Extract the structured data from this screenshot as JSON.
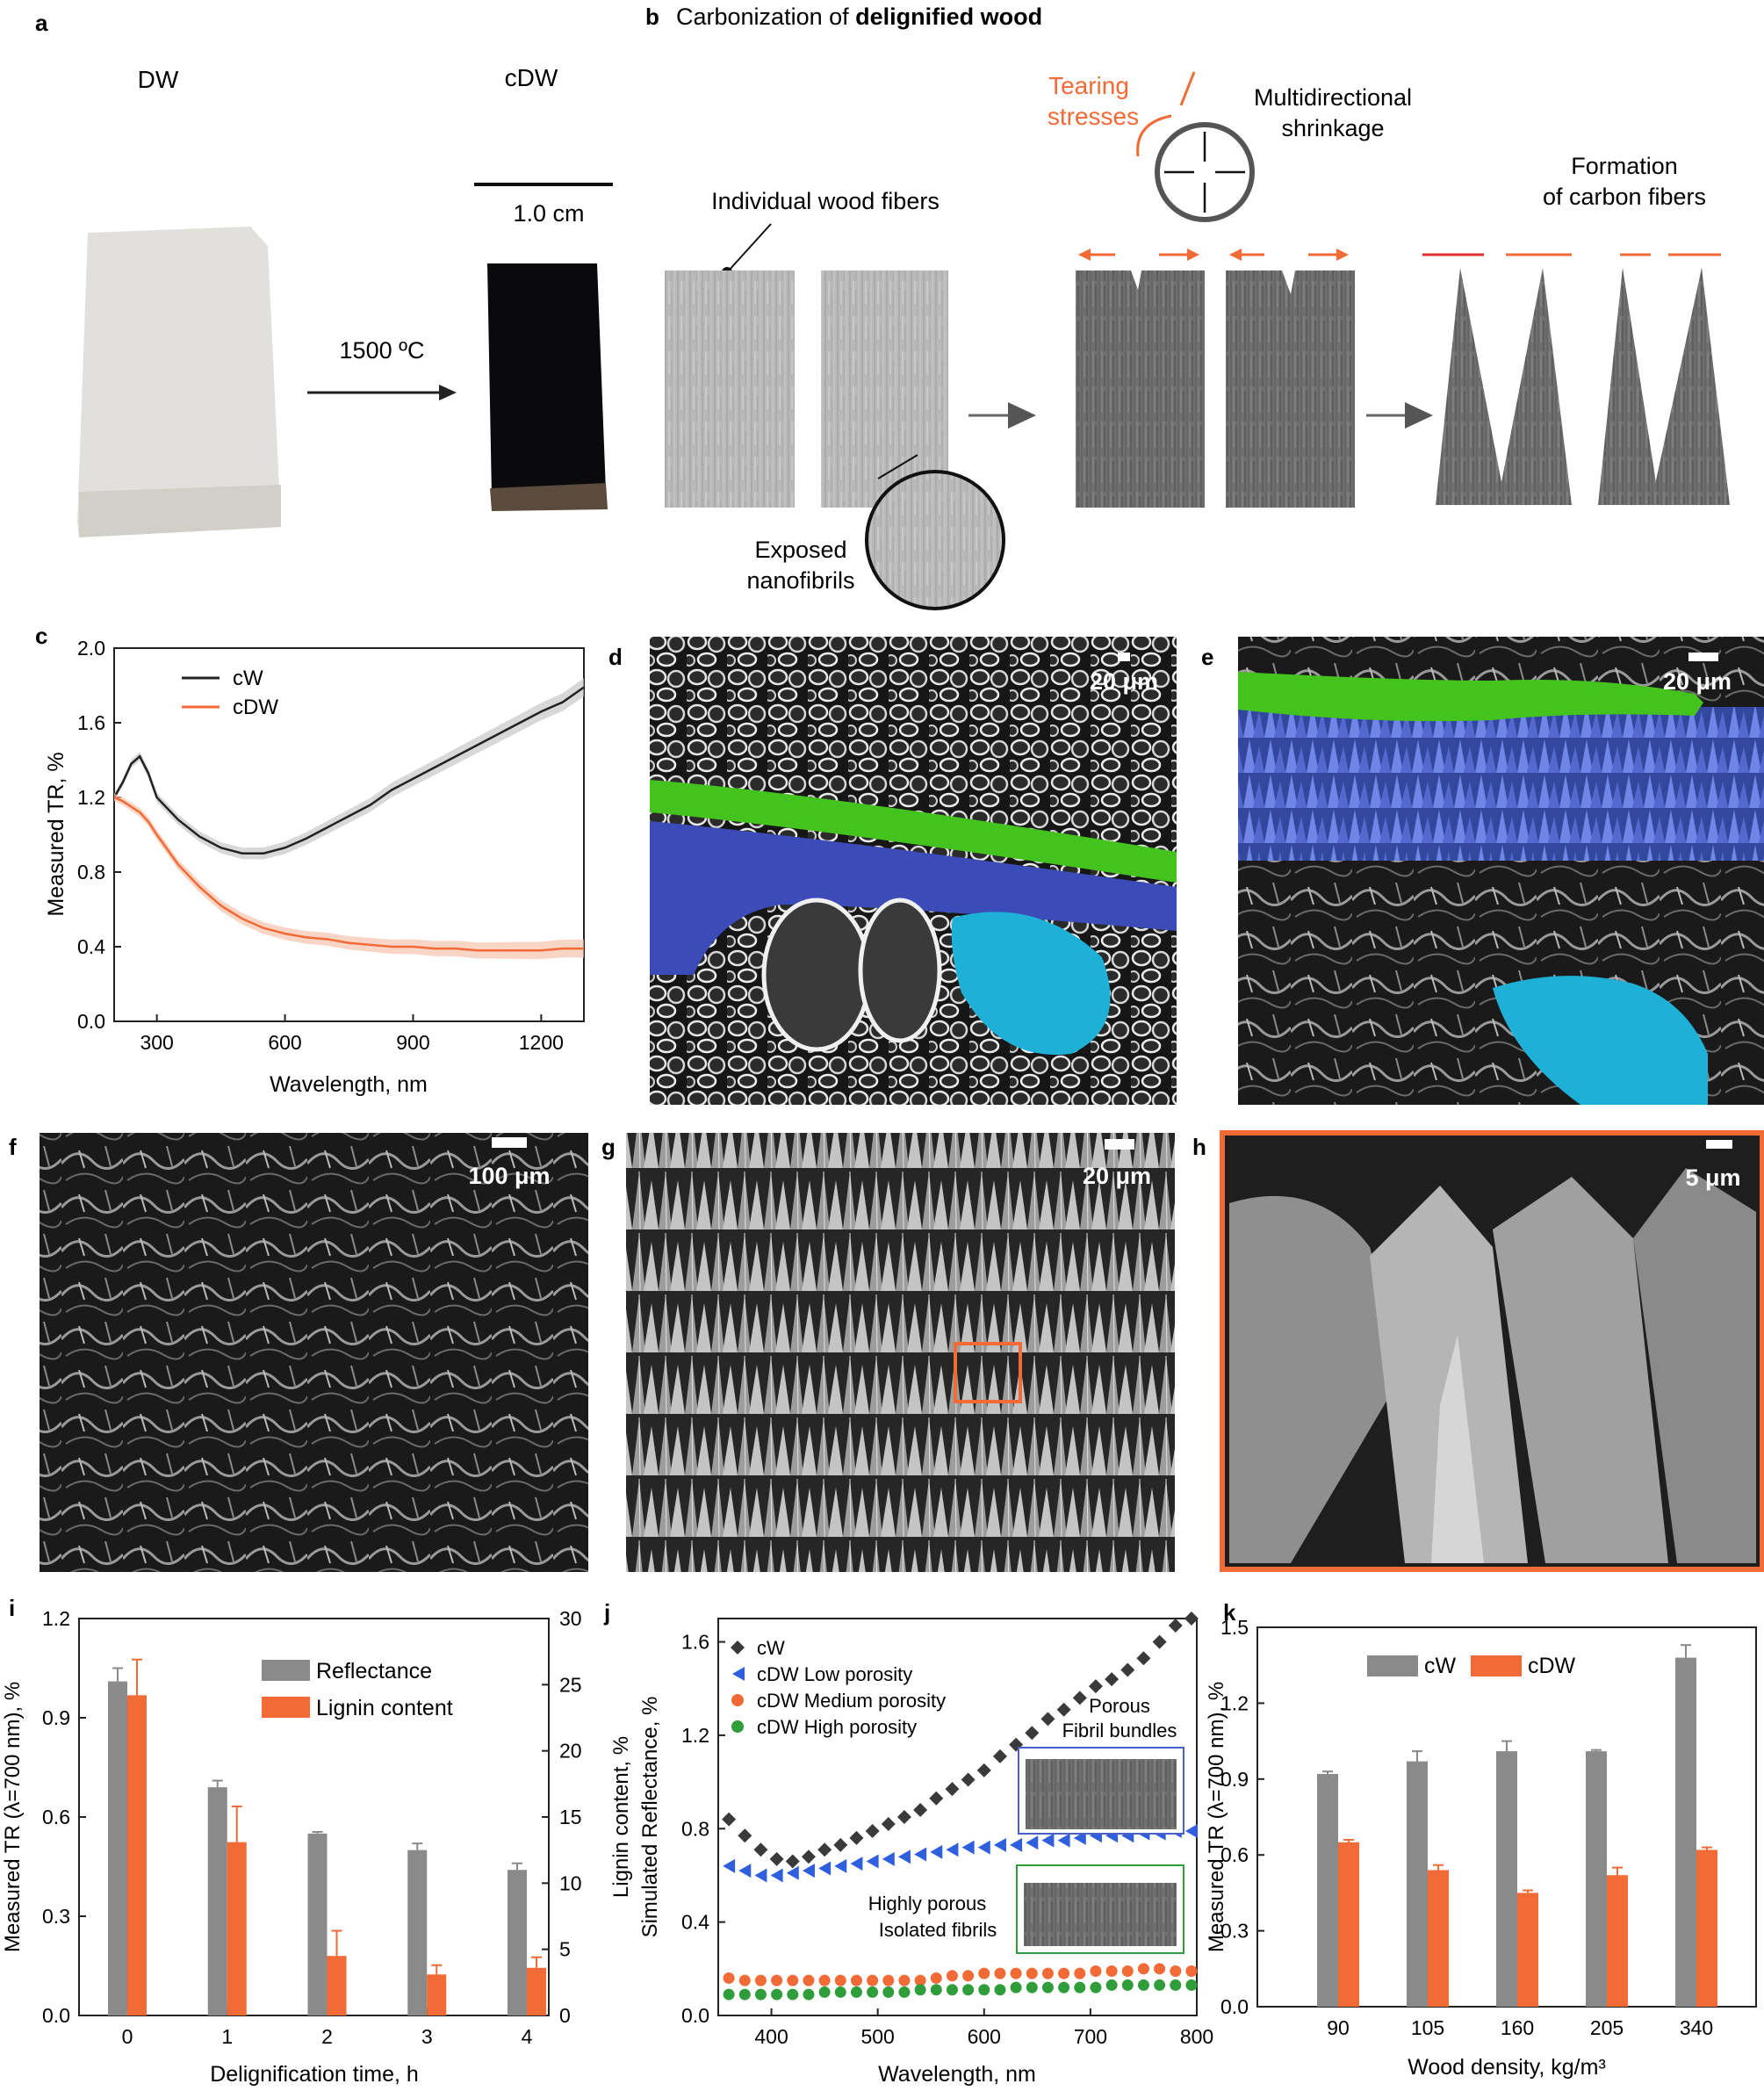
{
  "panel_letters": [
    "a",
    "b",
    "c",
    "d",
    "e",
    "f",
    "g",
    "h",
    "i",
    "j",
    "k"
  ],
  "panel_a": {
    "left_label": "DW",
    "right_label": "cDW",
    "arrow_label": "1500 ºC",
    "scale_label": "1.0 cm"
  },
  "panel_b": {
    "title_prefix": "Carbonization of ",
    "title_bold": "delignified wood",
    "fibers_label": "Individual wood fibers",
    "exposed_line1": "Exposed",
    "exposed_line2": "nanofibrils",
    "tearing_line1": "Tearing",
    "tearing_line2": "stresses",
    "shrink_line1": "Multidirectional",
    "shrink_line2": "shrinkage",
    "formation_line1": "Formation",
    "formation_line2": "of carbon fibers"
  },
  "micrographs": [
    {
      "panel": "d",
      "scale": "20 μm"
    },
    {
      "panel": "e",
      "scale": "20 μm"
    },
    {
      "panel": "f",
      "scale": "100 μm"
    },
    {
      "panel": "g",
      "scale": "20 μm"
    },
    {
      "panel": "h",
      "scale": "5 μm"
    }
  ],
  "colors": {
    "cw_gray": "#8a8a8a",
    "cdw_orange": "#f26a36",
    "green": "#44c21e",
    "blue": "#4b5fc8",
    "cyan": "#1fb0d8",
    "dark": "#222222"
  },
  "chart_data": [
    {
      "panel": "c",
      "type": "line",
      "xlabel": "Wavelength, nm",
      "ylabel": "Measured TR, %",
      "xlim": [
        200,
        1300
      ],
      "ylim": [
        0,
        2.0
      ],
      "xticks": [
        300,
        600,
        900,
        1200
      ],
      "yticks": [
        "0.0",
        "0.4",
        "0.8",
        "1.2",
        "1.6",
        "2.0"
      ],
      "series": [
        {
          "name": "cW",
          "x": [
            200,
            220,
            240,
            260,
            280,
            300,
            350,
            400,
            450,
            500,
            550,
            600,
            650,
            700,
            750,
            800,
            850,
            900,
            950,
            1000,
            1050,
            1100,
            1150,
            1200,
            1250,
            1300
          ],
          "y": [
            1.2,
            1.28,
            1.38,
            1.42,
            1.33,
            1.2,
            1.08,
            0.99,
            0.93,
            0.9,
            0.9,
            0.93,
            0.98,
            1.04,
            1.1,
            1.16,
            1.24,
            1.3,
            1.36,
            1.42,
            1.48,
            1.54,
            1.6,
            1.66,
            1.71,
            1.79
          ]
        },
        {
          "name": "cDW",
          "x": [
            200,
            220,
            240,
            260,
            280,
            300,
            350,
            400,
            450,
            500,
            550,
            600,
            650,
            700,
            750,
            800,
            850,
            900,
            950,
            1000,
            1050,
            1100,
            1150,
            1200,
            1250,
            1300
          ],
          "y": [
            1.2,
            1.18,
            1.15,
            1.12,
            1.07,
            1.0,
            0.84,
            0.72,
            0.62,
            0.55,
            0.5,
            0.47,
            0.45,
            0.44,
            0.42,
            0.41,
            0.4,
            0.4,
            0.39,
            0.39,
            0.38,
            0.38,
            0.38,
            0.38,
            0.39,
            0.39
          ]
        }
      ]
    },
    {
      "panel": "i",
      "type": "bar",
      "xlabel": "Delignification time, h",
      "ylabel": "Measured TR (λ=700 nm), %",
      "y2label": "Lignin content, %",
      "categories": [
        "0",
        "1",
        "2",
        "3",
        "4"
      ],
      "ylim": [
        0,
        1.2
      ],
      "y2lim": [
        0,
        30
      ],
      "yticks": [
        "0.0",
        "0.3",
        "0.6",
        "0.9",
        "1.2"
      ],
      "y2ticks": [
        "0",
        "5",
        "10",
        "15",
        "20",
        "25",
        "30"
      ],
      "series": [
        {
          "name": "Reflectance",
          "axis": "left",
          "values": [
            1.01,
            0.69,
            0.55,
            0.5,
            0.44
          ],
          "errors": [
            0.04,
            0.02,
            0.005,
            0.02,
            0.02
          ]
        },
        {
          "name": "Lignin content",
          "axis": "right",
          "values": [
            24.2,
            13.1,
            4.5,
            3.1,
            3.6
          ],
          "errors": [
            2.7,
            2.7,
            1.9,
            0.7,
            0.8
          ]
        }
      ]
    },
    {
      "panel": "j",
      "type": "scatter",
      "xlabel": "Wavelength, nm",
      "ylabel": "Simulated Reflectance, %",
      "xlim": [
        350,
        800
      ],
      "ylim": [
        0,
        1.7
      ],
      "xticks": [
        400,
        500,
        600,
        700,
        800
      ],
      "yticks": [
        "0.0",
        "0.4",
        "0.8",
        "1.2",
        "1.6"
      ],
      "series": [
        {
          "name": "cW",
          "x": [
            360,
            375,
            390,
            405,
            420,
            435,
            450,
            465,
            480,
            495,
            510,
            525,
            540,
            555,
            570,
            585,
            600,
            615,
            630,
            645,
            660,
            675,
            690,
            705,
            720,
            735,
            750,
            765,
            780,
            795
          ],
          "y": [
            0.84,
            0.77,
            0.71,
            0.67,
            0.66,
            0.68,
            0.71,
            0.73,
            0.76,
            0.79,
            0.82,
            0.85,
            0.88,
            0.93,
            0.97,
            1.01,
            1.05,
            1.11,
            1.16,
            1.21,
            1.27,
            1.31,
            1.36,
            1.41,
            1.44,
            1.48,
            1.53,
            1.6,
            1.67,
            1.7
          ]
        },
        {
          "name": "cDW Low porosity",
          "x": [
            360,
            375,
            390,
            405,
            420,
            435,
            450,
            465,
            480,
            495,
            510,
            525,
            540,
            555,
            570,
            585,
            600,
            615,
            630,
            645,
            660,
            675,
            690,
            705,
            720,
            735,
            750,
            765,
            780,
            795
          ],
          "y": [
            0.64,
            0.62,
            0.6,
            0.6,
            0.61,
            0.62,
            0.63,
            0.64,
            0.65,
            0.66,
            0.67,
            0.68,
            0.69,
            0.7,
            0.71,
            0.72,
            0.72,
            0.73,
            0.73,
            0.74,
            0.75,
            0.75,
            0.76,
            0.77,
            0.77,
            0.77,
            0.78,
            0.78,
            0.79,
            0.79
          ]
        },
        {
          "name": "cDW Medium porosity",
          "x": [
            360,
            375,
            390,
            405,
            420,
            435,
            450,
            465,
            480,
            495,
            510,
            525,
            540,
            555,
            570,
            585,
            600,
            615,
            630,
            645,
            660,
            675,
            690,
            705,
            720,
            735,
            750,
            765,
            780,
            795
          ],
          "y": [
            0.16,
            0.15,
            0.15,
            0.15,
            0.15,
            0.15,
            0.15,
            0.15,
            0.15,
            0.15,
            0.15,
            0.15,
            0.15,
            0.16,
            0.17,
            0.17,
            0.18,
            0.18,
            0.18,
            0.18,
            0.18,
            0.18,
            0.18,
            0.19,
            0.19,
            0.19,
            0.2,
            0.2,
            0.19,
            0.19
          ]
        },
        {
          "name": "cDW High porosity",
          "x": [
            360,
            375,
            390,
            405,
            420,
            435,
            450,
            465,
            480,
            495,
            510,
            525,
            540,
            555,
            570,
            585,
            600,
            615,
            630,
            645,
            660,
            675,
            690,
            705,
            720,
            735,
            750,
            765,
            780,
            795
          ],
          "y": [
            0.09,
            0.09,
            0.09,
            0.09,
            0.09,
            0.09,
            0.1,
            0.1,
            0.1,
            0.1,
            0.1,
            0.1,
            0.11,
            0.11,
            0.11,
            0.11,
            0.11,
            0.11,
            0.12,
            0.12,
            0.12,
            0.12,
            0.12,
            0.12,
            0.13,
            0.13,
            0.13,
            0.13,
            0.13,
            0.13
          ]
        }
      ],
      "inset_labels": {
        "porous_line1": "Porous",
        "porous_line2": "Fibril bundles",
        "highly_line1": "Highly porous",
        "highly_line2": "Isolated fibrils"
      }
    },
    {
      "panel": "k",
      "type": "bar",
      "xlabel": "Wood density, kg/m³",
      "ylabel": "Measured TR (λ=700 nm), %",
      "categories": [
        "90",
        "105",
        "160",
        "205",
        "340"
      ],
      "ylim": [
        0,
        1.5
      ],
      "yticks": [
        "0.0",
        "0.3",
        "0.6",
        "0.9",
        "1.2",
        "1.5"
      ],
      "series": [
        {
          "name": "cW",
          "values": [
            0.92,
            0.97,
            1.01,
            1.01,
            1.38
          ],
          "errors": [
            0.01,
            0.04,
            0.04,
            0.005,
            0.05
          ]
        },
        {
          "name": "cDW",
          "values": [
            0.65,
            0.54,
            0.45,
            0.52,
            0.62
          ],
          "errors": [
            0.01,
            0.02,
            0.01,
            0.03,
            0.01
          ]
        }
      ]
    }
  ]
}
